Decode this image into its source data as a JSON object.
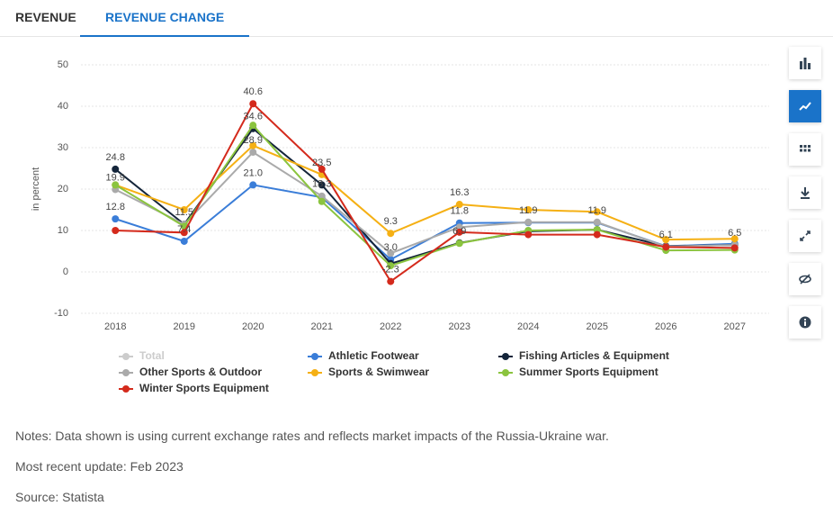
{
  "tabs": [
    "REVENUE",
    "REVENUE CHANGE"
  ],
  "chart_data": {
    "type": "line",
    "y_label": "in percent",
    "categories": [
      "2018",
      "2019",
      "2020",
      "2021",
      "2022",
      "2023",
      "2024",
      "2025",
      "2026",
      "2027"
    ],
    "ylim": [
      -10,
      50
    ],
    "yticks": [
      -10,
      0,
      10,
      20,
      30,
      40,
      50
    ],
    "grid": true,
    "series": [
      {
        "name": "Total",
        "color": "#cccccc",
        "hidden": true,
        "values": [
          null,
          null,
          null,
          null,
          null,
          null,
          null,
          null,
          null,
          null
        ]
      },
      {
        "name": "Athletic Footwear",
        "color": "#3a7dd8",
        "values": [
          12.8,
          7.4,
          21.0,
          18.0,
          3.0,
          11.8,
          11.9,
          11.9,
          6.2,
          6.8
        ],
        "value_labels": [
          "12.8",
          "7.4",
          "21.0",
          null,
          "3.0",
          "11.8",
          "11.9",
          "11.9",
          null,
          null
        ]
      },
      {
        "name": "Fishing Articles & Equipment",
        "color": "#14253a",
        "values": [
          24.8,
          11.5,
          34.6,
          21.0,
          2.0,
          7.0,
          9.8,
          10.2,
          6.2,
          6.5
        ],
        "value_labels": [
          "24.8",
          "11.5",
          "34.6",
          null,
          null,
          null,
          null,
          null,
          null,
          "6.5"
        ]
      },
      {
        "name": "Other Sports & Outdoor",
        "color": "#aaaaaa",
        "values": [
          19.9,
          11.5,
          28.9,
          18.3,
          4.5,
          10.8,
          12.0,
          12.0,
          6.1,
          6.5
        ],
        "value_labels": [
          "19.9",
          null,
          "28.9",
          "18.3",
          null,
          null,
          null,
          null,
          "6.1",
          null
        ]
      },
      {
        "name": "Sports & Swimwear",
        "color": "#f5b014",
        "values": [
          21.0,
          15.0,
          30.5,
          23.5,
          9.3,
          16.3,
          15.0,
          14.5,
          7.8,
          8.0
        ],
        "value_labels": [
          null,
          null,
          null,
          "23.5",
          "9.3",
          "16.3",
          null,
          null,
          null,
          null
        ]
      },
      {
        "name": "Summer Sports Equipment",
        "color": "#8bc43f",
        "values": [
          21.0,
          11.0,
          35.4,
          17.0,
          1.5,
          6.9,
          10.0,
          10.2,
          5.2,
          5.3
        ],
        "value_labels": [
          null,
          null,
          null,
          null,
          null,
          "6.9",
          null,
          null,
          null,
          null
        ]
      },
      {
        "name": "Winter Sports Equipment",
        "color": "#d42a1c",
        "values": [
          10.0,
          9.5,
          40.6,
          24.8,
          -2.3,
          9.6,
          9.0,
          9.0,
          6.0,
          5.8
        ],
        "value_labels": [
          null,
          null,
          "40.6",
          null,
          "-2.3",
          null,
          null,
          null,
          null,
          null
        ]
      }
    ]
  },
  "notes": [
    "Notes: Data shown is using current exchange rates and reflects market impacts of the Russia-Ukraine war.",
    "Most recent update: Feb 2023",
    "Source: Statista"
  ]
}
